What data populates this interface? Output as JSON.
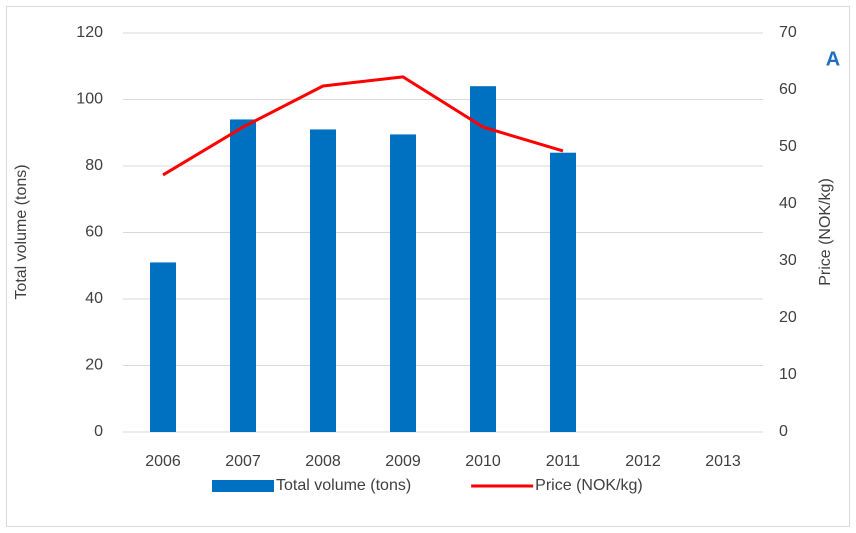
{
  "chart_data": {
    "type": "bar-line",
    "categories": [
      "2006",
      "2007",
      "2008",
      "2009",
      "2010",
      "2011",
      "2012",
      "2013"
    ],
    "series": [
      {
        "name": "Total volume (tons)",
        "type": "bar",
        "color": "#0070c0",
        "values": [
          51,
          94,
          91,
          89.5,
          104,
          84,
          null,
          null
        ]
      },
      {
        "name": "Price (NOK/kg)",
        "type": "line",
        "axis": "y2",
        "color": "#ff0000",
        "values": [
          45.1,
          53.5,
          60.7,
          62.3,
          53.5,
          49.3,
          null,
          null
        ]
      }
    ],
    "ylabel": "Total volume (tons)",
    "y2label": "Price (NOK/kg)",
    "ylim": [
      0,
      120
    ],
    "yticks": [
      0,
      20,
      40,
      60,
      80,
      100,
      120
    ],
    "y2lim": [
      0,
      70
    ],
    "y2ticks": [
      0,
      10,
      20,
      30,
      40,
      50,
      60,
      70
    ],
    "grid": true,
    "legend": "bottom",
    "annotation": "A"
  }
}
